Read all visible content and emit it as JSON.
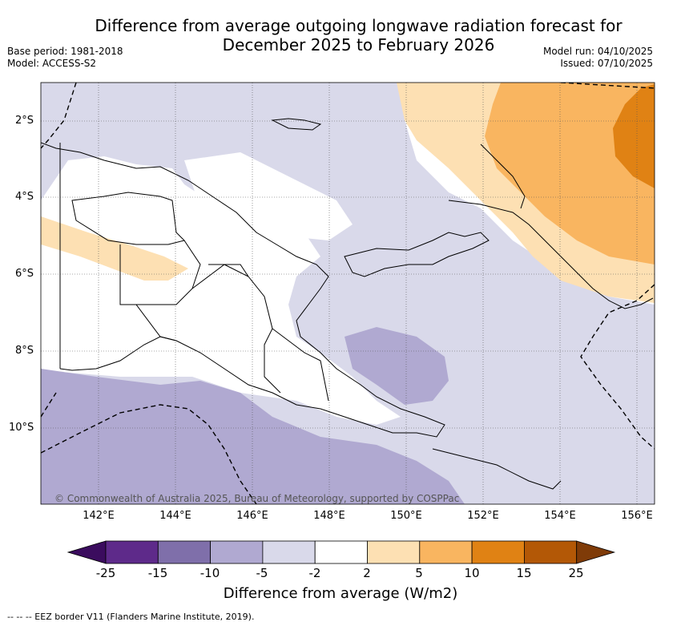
{
  "title_line1": "Difference from average outgoing longwave radiation forecast for",
  "title_line2": "December 2025 to February 2026",
  "base_period": "Base period: 1981-2018",
  "model": "Model: ACCESS-S2",
  "model_run": "Model run: 04/10/2025",
  "issued": "Issued: 07/10/2025",
  "lat_ticks": [
    "2°S",
    "4°S",
    "6°S",
    "8°S",
    "10°S"
  ],
  "lon_ticks": [
    "142°E",
    "144°E",
    "146°E",
    "148°E",
    "150°E",
    "152°E",
    "154°E",
    "156°E"
  ],
  "copyright": "© Commonwealth of Australia 2025, Bureau of Meteorology, supported by COSPPac",
  "colorbar": {
    "title": "Difference from average (W/m2)",
    "labels": [
      "-25",
      "-15",
      "-10",
      "-5",
      "-2",
      "2",
      "5",
      "10",
      "15",
      "25"
    ],
    "colors": [
      "#3b0c5e",
      "#5e2a8a",
      "#7f6faa",
      "#b0a9d1",
      "#d9d9ea",
      "#ffffff",
      "#fde0b3",
      "#f9b560",
      "#e08214",
      "#b35806",
      "#7f3b08"
    ]
  },
  "footer": "--  --  -- EEZ border V11 (Flanders Marine Institute, 2019)."
}
